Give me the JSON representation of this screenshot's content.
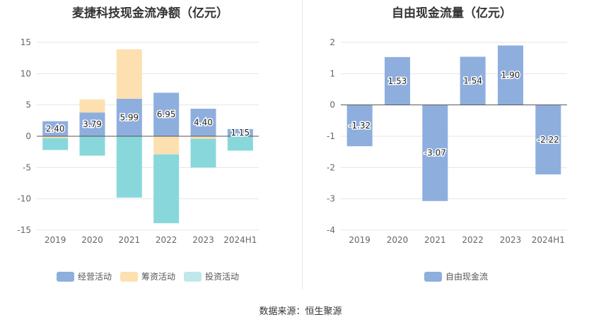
{
  "source_text": "数据来源：恒生聚源",
  "chart_data": [
    {
      "type": "bar",
      "stacked": true,
      "title": "麦捷科技现金流净额（亿元）",
      "categories": [
        "2019",
        "2020",
        "2021",
        "2022",
        "2023",
        "2024H1"
      ],
      "ylim": [
        -15,
        15
      ],
      "yticks": [
        -15,
        -10,
        -5,
        0,
        5,
        10,
        15
      ],
      "grid": true,
      "legend_position": "bottom",
      "series": [
        {
          "name": "经营活动",
          "color": "#8eaede",
          "values": [
            2.4,
            3.79,
            5.99,
            6.95,
            4.4,
            1.15
          ],
          "labels": [
            "2.40",
            "3.79",
            "5.99",
            "6.95",
            "4.40",
            "1.15"
          ]
        },
        {
          "name": "筹资活动",
          "color": "#fde0b0",
          "values": [
            -0.3,
            2.1,
            7.9,
            -2.9,
            -0.4,
            0.0
          ]
        },
        {
          "name": "投资活动",
          "color": "#88d8db",
          "values": [
            -1.9,
            -3.1,
            -9.8,
            -11.0,
            -4.6,
            -2.3
          ]
        }
      ]
    },
    {
      "type": "bar",
      "title": "自由现金流量（亿元）",
      "categories": [
        "2019",
        "2020",
        "2021",
        "2022",
        "2023",
        "2024H1"
      ],
      "ylim": [
        -4,
        2
      ],
      "yticks": [
        -4,
        -3,
        -2,
        -1,
        0,
        1,
        2
      ],
      "grid": true,
      "legend_position": "bottom",
      "series": [
        {
          "name": "自由现金流",
          "color": "#8eaede",
          "values": [
            -1.32,
            1.53,
            -3.07,
            1.54,
            1.9,
            -2.22
          ],
          "labels": [
            "-1.32",
            "1.53",
            "-3.07",
            "1.54",
            "1.90",
            "-2.22"
          ]
        }
      ]
    }
  ]
}
